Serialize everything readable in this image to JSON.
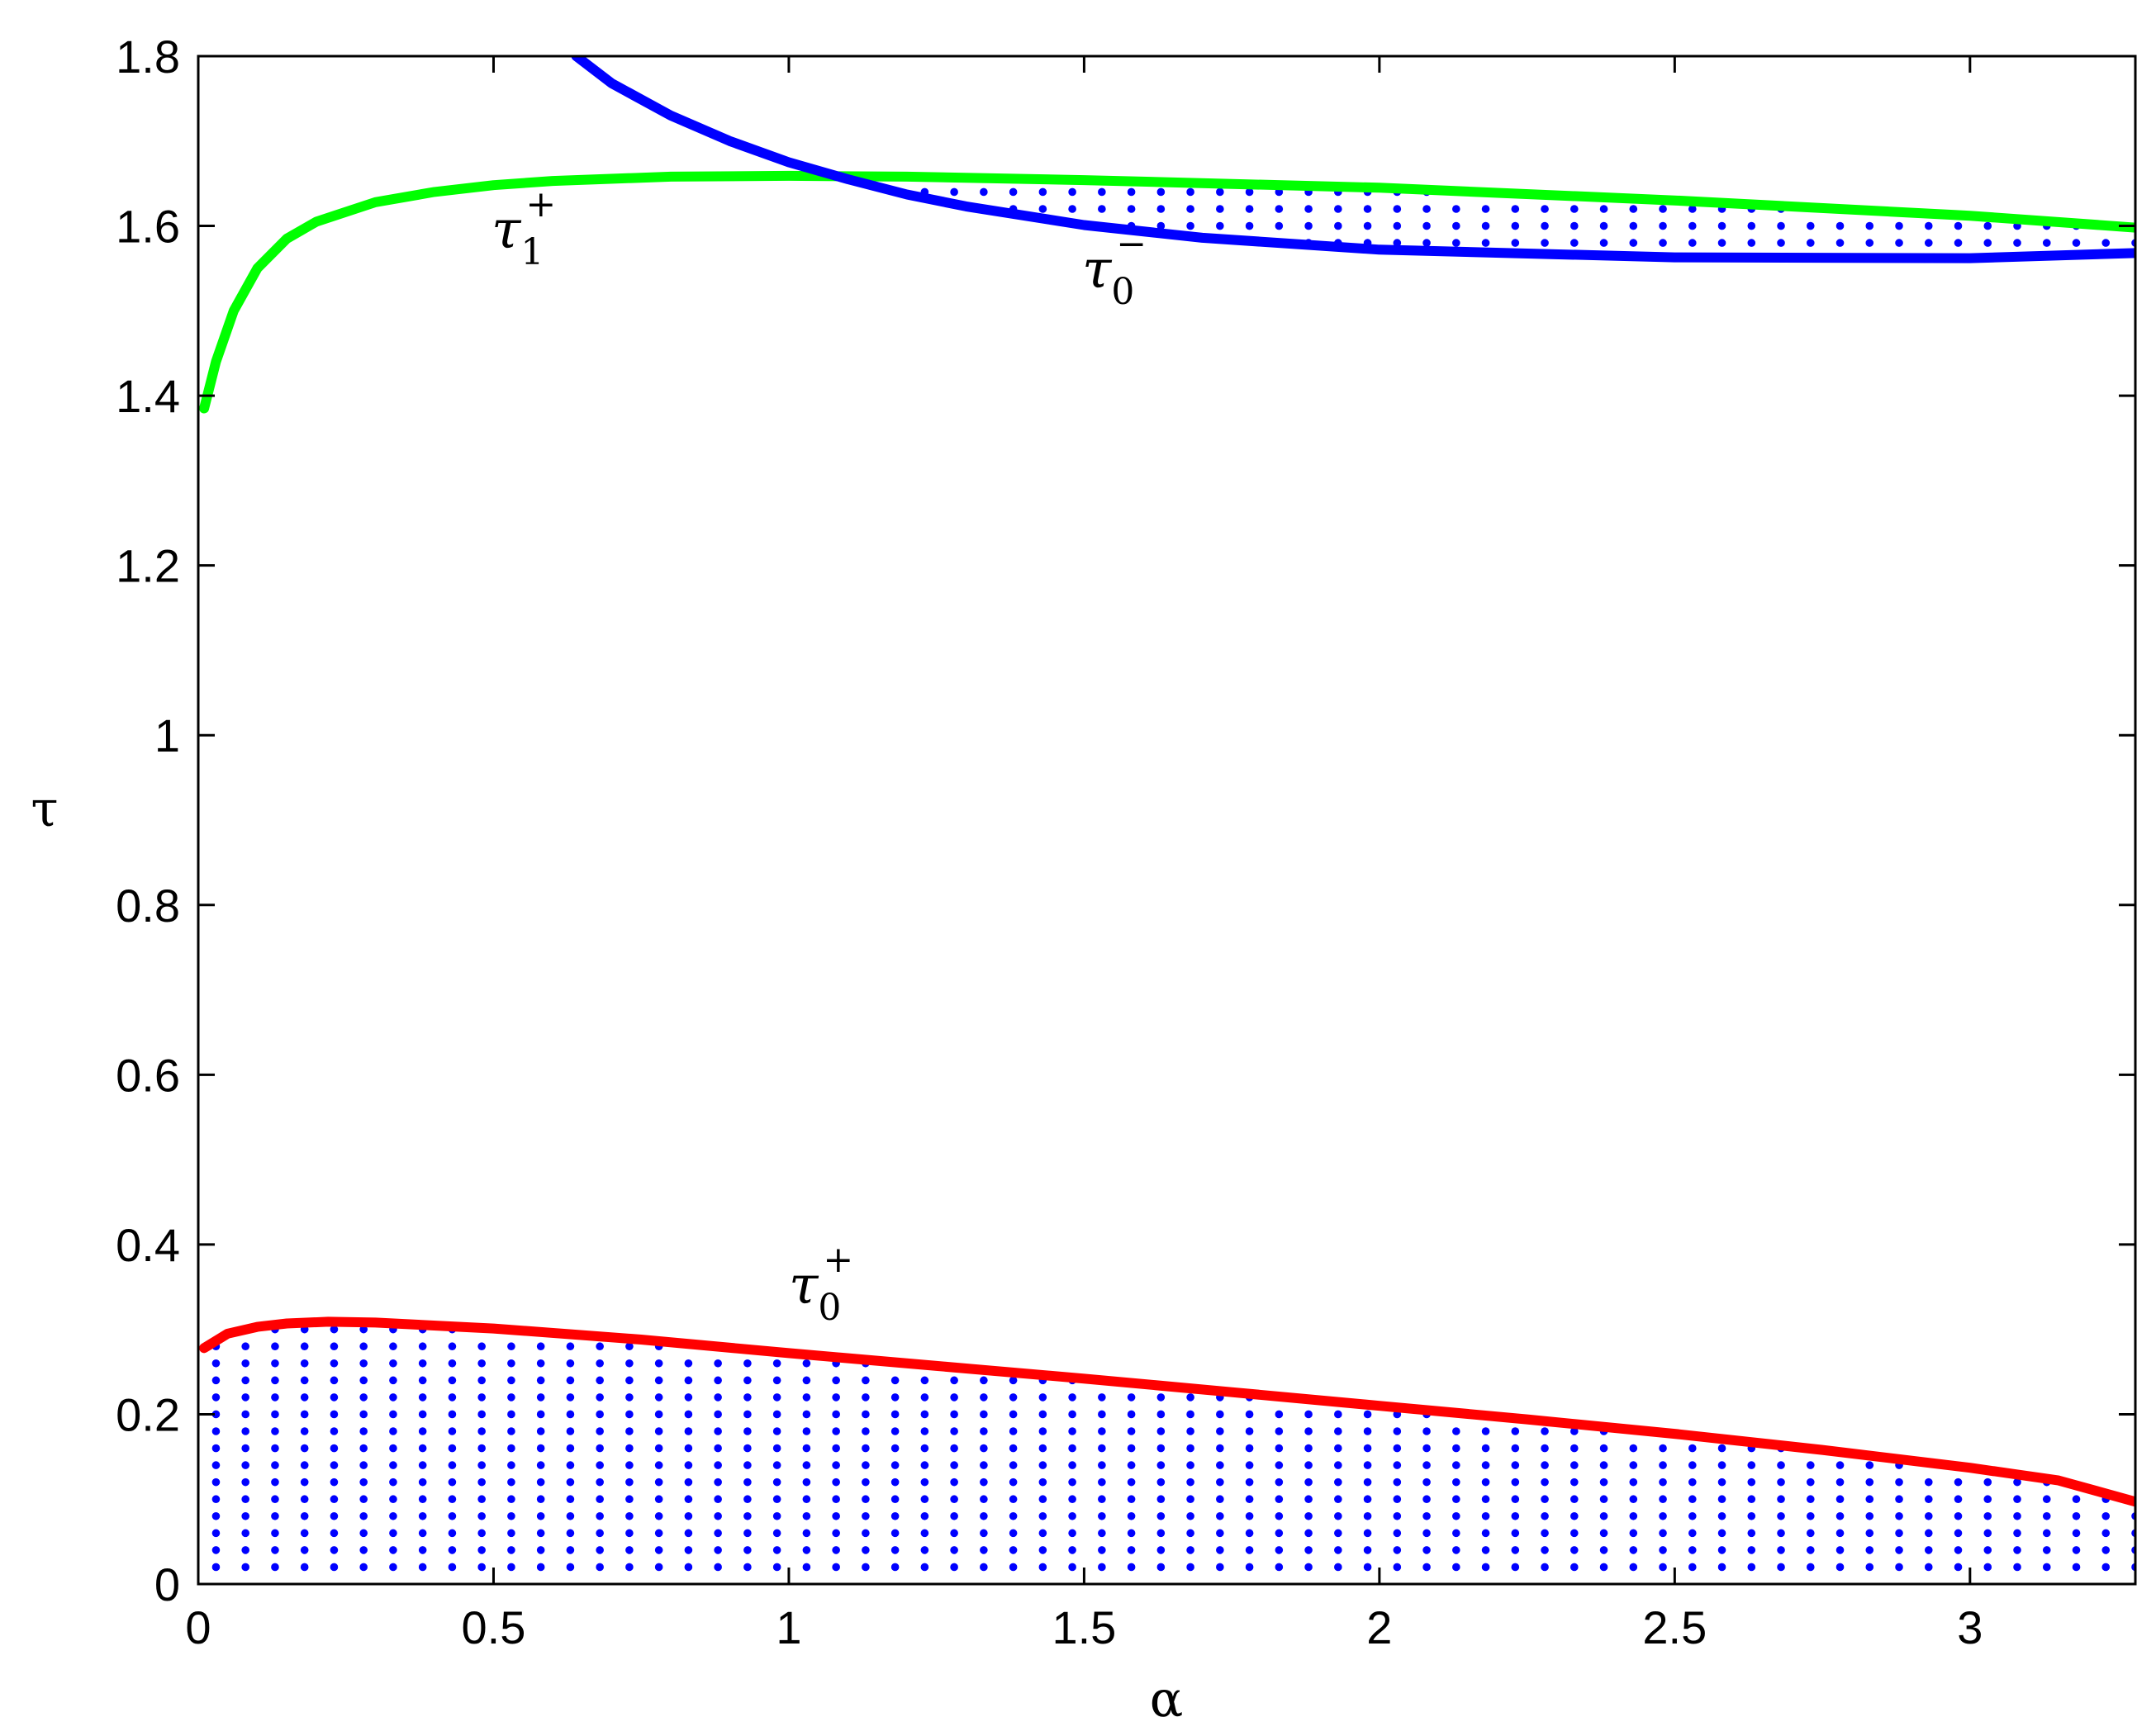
{
  "chart_data": {
    "type": "line",
    "title": "",
    "xlabel": "α",
    "ylabel": "τ",
    "xlim": [
      0,
      3.28
    ],
    "ylim": [
      0,
      1.8
    ],
    "xticks": [
      "0",
      "0.5",
      "1",
      "1.5",
      "2",
      "2.5",
      "3"
    ],
    "yticks": [
      "0",
      "0.2",
      "0.4",
      "0.6",
      "0.8",
      "1",
      "1.2",
      "1.4",
      "1.6",
      "1.8"
    ],
    "grid": false,
    "series": [
      {
        "label_base": "τ",
        "label_sub": "1",
        "label_sup": "+",
        "color": "#00ff00",
        "x": [
          0.01,
          0.03,
          0.06,
          0.1,
          0.15,
          0.2,
          0.3,
          0.4,
          0.5,
          0.6,
          0.8,
          1.0,
          1.2,
          1.5,
          2.0,
          2.5,
          3.0,
          3.28
        ],
        "y": [
          1.385,
          1.44,
          1.5,
          1.55,
          1.585,
          1.605,
          1.628,
          1.64,
          1.648,
          1.653,
          1.658,
          1.659,
          1.658,
          1.654,
          1.645,
          1.63,
          1.612,
          1.598
        ]
      },
      {
        "label_base": "τ",
        "label_sub": "0",
        "label_sup": "−",
        "color": "#0000ff",
        "x": [
          0.64,
          0.7,
          0.8,
          0.9,
          1.0,
          1.1,
          1.2,
          1.3,
          1.5,
          1.7,
          2.0,
          2.5,
          3.0,
          3.28
        ],
        "y": [
          1.8,
          1.768,
          1.73,
          1.7,
          1.675,
          1.655,
          1.637,
          1.623,
          1.601,
          1.586,
          1.572,
          1.563,
          1.562,
          1.568
        ]
      },
      {
        "label_base": "τ",
        "label_sub": "0",
        "label_sup": "+",
        "color": "#ff0000",
        "x": [
          0.01,
          0.05,
          0.1,
          0.15,
          0.22,
          0.3,
          0.5,
          0.75,
          1.0,
          1.25,
          1.5,
          1.75,
          2.0,
          2.25,
          2.5,
          2.75,
          3.0,
          3.15,
          3.28
        ],
        "y": [
          0.278,
          0.295,
          0.303,
          0.307,
          0.309,
          0.308,
          0.301,
          0.288,
          0.272,
          0.257,
          0.242,
          0.226,
          0.21,
          0.194,
          0.177,
          0.158,
          0.137,
          0.122,
          0.097
        ]
      }
    ],
    "shaded_regions": [
      {
        "pattern": "blue dots",
        "lower": "τ = 0",
        "upper": "τ0+ curve",
        "x_range": [
          0.03,
          3.28
        ]
      },
      {
        "pattern": "blue dots",
        "lower": "τ0− curve",
        "upper": "τ1+ curve",
        "x_range": [
          1.08,
          3.28
        ]
      }
    ]
  }
}
